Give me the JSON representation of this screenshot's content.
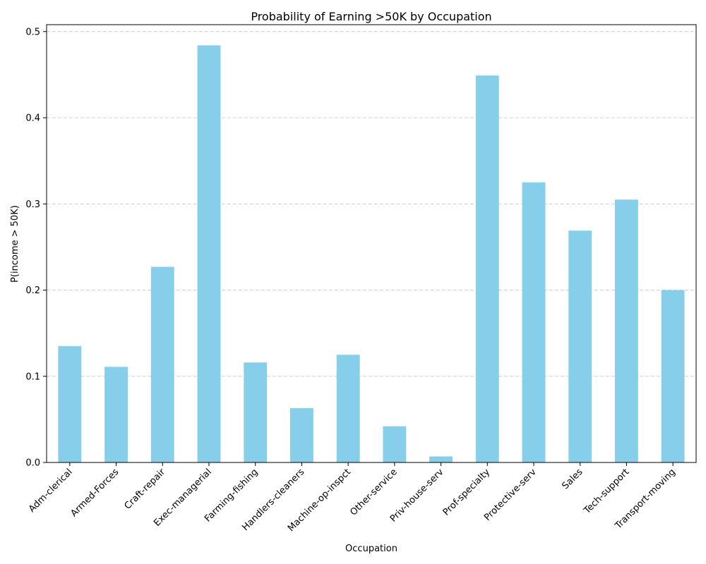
{
  "chart_data": {
    "type": "bar",
    "title": "Probability of Earning >50K by Occupation",
    "xlabel": "Occupation",
    "ylabel": "P(income > 50K)",
    "categories": [
      "Adm-clerical",
      "Armed-Forces",
      "Craft-repair",
      "Exec-managerial",
      "Farming-fishing",
      "Handlers-cleaners",
      "Machine-op-inspct",
      "Other-service",
      "Priv-house-serv",
      "Prof-specialty",
      "Protective-serv",
      "Sales",
      "Tech-support",
      "Transport-moving"
    ],
    "values": [
      0.135,
      0.111,
      0.227,
      0.484,
      0.116,
      0.063,
      0.125,
      0.042,
      0.007,
      0.449,
      0.325,
      0.269,
      0.305,
      0.2
    ],
    "ylim": [
      0,
      0.508
    ],
    "yticks": [
      0.0,
      0.1,
      0.2,
      0.3,
      0.4,
      0.5
    ],
    "ytick_labels": [
      "0.0",
      "0.1",
      "0.2",
      "0.3",
      "0.4",
      "0.5"
    ],
    "bar_color": "#87ceeb",
    "grid": "y-dashed",
    "legend": "none"
  }
}
